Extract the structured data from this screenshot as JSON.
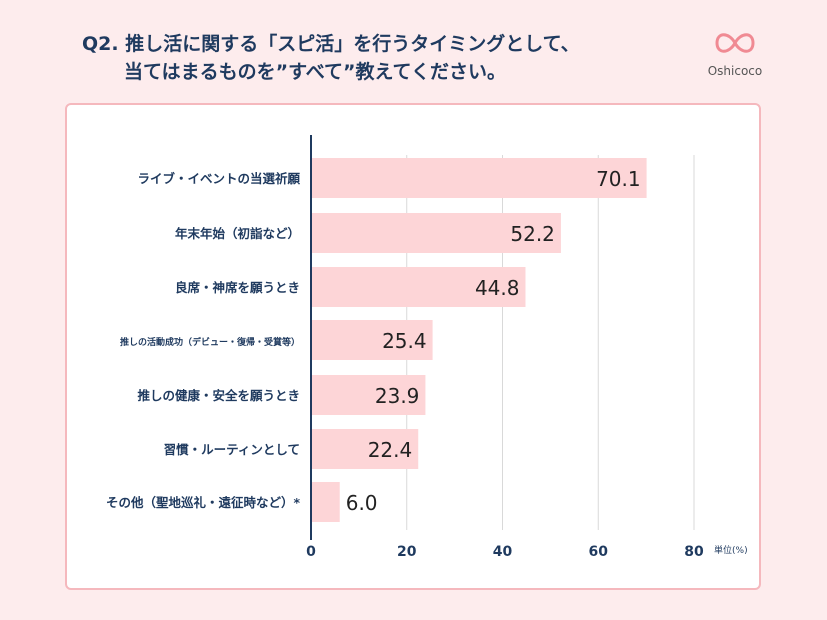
{
  "title": {
    "line1": "Q2. 推し活に関する「スピ活」を行うタイミングとして、",
    "line2": "当てはまるものを”すべて”教えてください。"
  },
  "logo": {
    "brand": "Oshicoco"
  },
  "chart_data": {
    "type": "bar",
    "orientation": "horizontal",
    "categories": [
      "ライブ・イベントの当選祈願",
      "年末年始（初詣など）",
      "良席・神席を願うとき",
      "推しの活動成功（デビュー・復帰・受賞等）",
      "推しの健康・安全を願うとき",
      "習慣・ルーティンとして",
      "その他（聖地巡礼・遠征時など）*"
    ],
    "values": [
      70.1,
      52.2,
      44.8,
      25.4,
      23.9,
      22.4,
      6.0
    ],
    "value_labels": [
      "70.1",
      "52.2",
      "44.8",
      "25.4",
      "23.9",
      "22.4",
      "6.0"
    ],
    "xlim": [
      0,
      80
    ],
    "xticks": [
      "0",
      "20",
      "40",
      "60",
      "80"
    ],
    "unit_label": "単位(%)",
    "grid": true,
    "colors": {
      "bar": "#fdd5d7",
      "text": "#1f3a5f",
      "grid": "#d9d9d9",
      "accent": "#f08a93"
    }
  }
}
